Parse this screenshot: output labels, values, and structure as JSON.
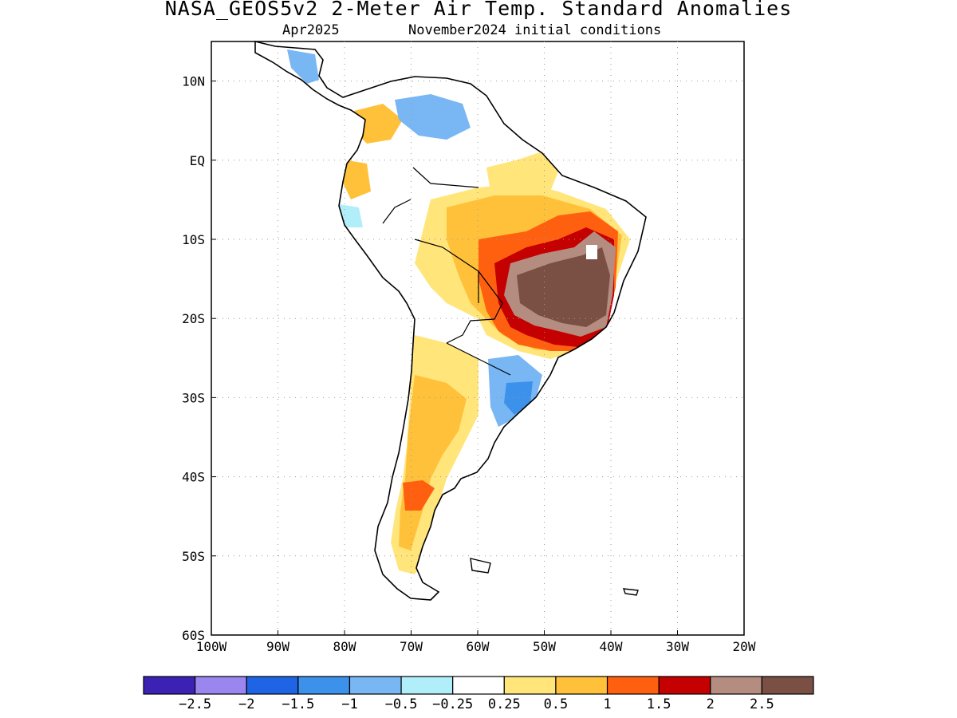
{
  "header": {
    "title": "NASA_GEOS5v2 2-Meter Air Temp. Standard Anomalies",
    "valid_month": "Apr2025",
    "init": "November2024 initial conditions"
  },
  "map": {
    "lon_range": [
      -100,
      -20
    ],
    "lat_range": [
      -60,
      15
    ],
    "lon_ticks": [
      {
        "v": -100,
        "label": "100W"
      },
      {
        "v": -90,
        "label": "90W"
      },
      {
        "v": -80,
        "label": "80W"
      },
      {
        "v": -70,
        "label": "70W"
      },
      {
        "v": -60,
        "label": "60W"
      },
      {
        "v": -50,
        "label": "50W"
      },
      {
        "v": -40,
        "label": "40W"
      },
      {
        "v": -30,
        "label": "30W"
      },
      {
        "v": -20,
        "label": "20W"
      }
    ],
    "lat_ticks": [
      {
        "v": 10,
        "label": "10N"
      },
      {
        "v": 0,
        "label": "EQ"
      },
      {
        "v": -10,
        "label": "10S"
      },
      {
        "v": -20,
        "label": "20S"
      },
      {
        "v": -30,
        "label": "30S"
      },
      {
        "v": -40,
        "label": "40S"
      },
      {
        "v": -50,
        "label": "50S"
      },
      {
        "v": -60,
        "label": "60S"
      }
    ]
  },
  "colorbar": {
    "colors": [
      "#3b22b4",
      "#9b86f0",
      "#1f64e4",
      "#3c91ea",
      "#78b6f4",
      "#b0eefa",
      "#ffffff",
      "#ffe57a",
      "#ffc13a",
      "#ff6010",
      "#c50000",
      "#b48c80",
      "#7a5045"
    ],
    "labels": [
      "-2.5",
      "-2",
      "-1.5",
      "-1",
      "-0.5",
      "-0.25",
      "0.25",
      "0.5",
      "1",
      "1.5",
      "2",
      "2.5"
    ]
  }
}
